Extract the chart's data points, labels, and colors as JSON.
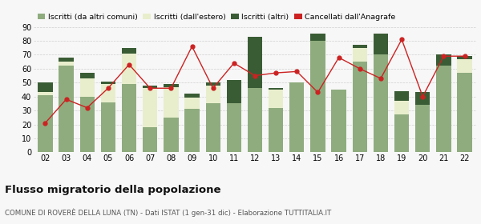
{
  "years": [
    "02",
    "03",
    "04",
    "05",
    "06",
    "07",
    "08",
    "09",
    "10",
    "11",
    "12",
    "13",
    "14",
    "15",
    "16",
    "17",
    "18",
    "19",
    "20",
    "21",
    "22"
  ],
  "iscritti_comuni": [
    41,
    62,
    40,
    36,
    49,
    18,
    25,
    31,
    35,
    35,
    46,
    32,
    50,
    80,
    45,
    65,
    70,
    27,
    34,
    62,
    57
  ],
  "iscritti_estero": [
    2,
    3,
    13,
    13,
    22,
    28,
    22,
    8,
    13,
    0,
    0,
    13,
    0,
    0,
    0,
    10,
    0,
    10,
    0,
    0,
    10
  ],
  "iscritti_altri": [
    7,
    3,
    4,
    2,
    4,
    2,
    2,
    3,
    2,
    17,
    37,
    1,
    0,
    5,
    0,
    2,
    15,
    7,
    9,
    8,
    2
  ],
  "cancellati": [
    21,
    38,
    32,
    46,
    63,
    46,
    46,
    76,
    46,
    64,
    55,
    57,
    58,
    43,
    68,
    60,
    53,
    81,
    40,
    69,
    69
  ],
  "color_comuni": "#8fac7e",
  "color_estero": "#e8eecc",
  "color_altri": "#3a5c35",
  "color_cancellati": "#cc2222",
  "background_color": "#f7f7f7",
  "grid_color": "#d0d0d0",
  "ylim": [
    0,
    90
  ],
  "yticks": [
    0,
    10,
    20,
    30,
    40,
    50,
    60,
    70,
    80,
    90
  ],
  "title": "Flusso migratorio della popolazione",
  "subtitle": "COMUNE DI ROVERÈ DELLA LUNA (TN) - Dati ISTAT (1 gen-31 dic) - Elaborazione TUTTITALIA.IT",
  "legend_labels": [
    "Iscritti (da altri comuni)",
    "Iscritti (dall'estero)",
    "Iscritti (altri)",
    "Cancellati dall'Anagrafe"
  ]
}
